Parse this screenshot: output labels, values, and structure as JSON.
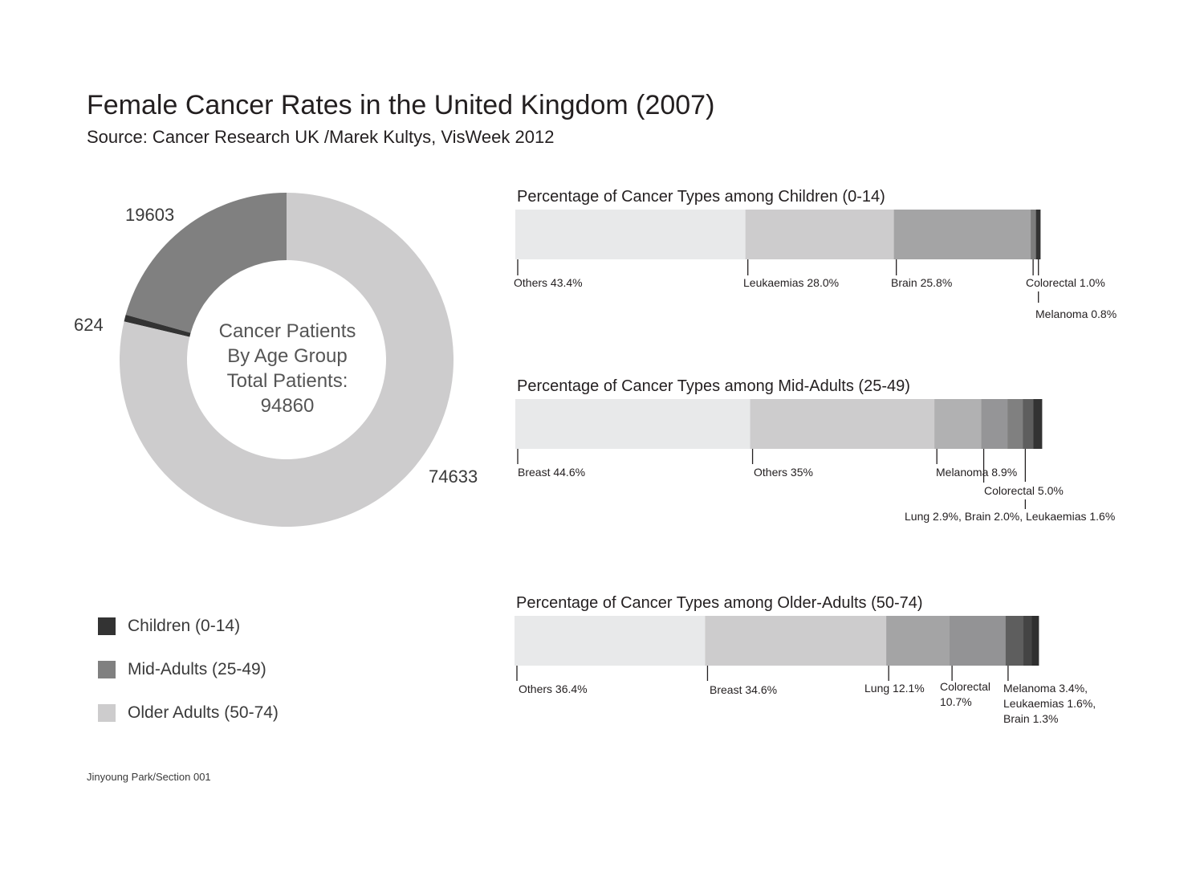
{
  "header": {
    "title": "Female Cancer Rates in the United Kingdom (2007)",
    "subtitle": "Source: Cancer Research UK /Marek Kultys, VisWeek 2012"
  },
  "donut": {
    "center_lines": [
      "Cancer Patients",
      "By Age Group",
      "Total Patients:",
      "94860"
    ]
  },
  "legend": [
    {
      "label": "Children (0-14)",
      "color": "#333333"
    },
    {
      "label": "Mid-Adults (25-49)",
      "color": "#808080"
    },
    {
      "label": "Older Adults (50-74)",
      "color": "#cdcccd"
    }
  ],
  "footer": "Jinyoung Park/Section 001",
  "chart_data": [
    {
      "type": "pie",
      "variant": "donut",
      "categories": [
        "Children (0-14)",
        "Mid-Adults (25-49)",
        "Older Adults (50-74)"
      ],
      "value_labels": [
        "624",
        "19603",
        "74633"
      ],
      "values": [
        624,
        19603,
        74633
      ],
      "colors": [
        "#333333",
        "#808080",
        "#cdcccd"
      ],
      "total": 94860
    },
    {
      "type": "bar",
      "orientation": "horizontal-stacked",
      "title": "Percentage of Cancer Types among Children (0-14)",
      "categories": [
        "Others",
        "Leukaemias",
        "Brain",
        "Colorectal",
        "Melanoma"
      ],
      "values": [
        43.4,
        28.0,
        25.8,
        1.0,
        0.8
      ],
      "colors": [
        "#e8e9ea",
        "#cdcccd",
        "#a4a4a5",
        "#7d7d7d",
        "#333333"
      ],
      "labels": [
        "Others 43.4%",
        "Leukaemias 28.0%",
        "Brain 25.8%",
        "Colorectal 1.0%",
        "Melanoma 0.8%"
      ]
    },
    {
      "type": "bar",
      "orientation": "horizontal-stacked",
      "title": "Percentage of Cancer Types among Mid-Adults (25-49)",
      "categories": [
        "Breast",
        "Others",
        "Melanoma",
        "Colorectal",
        "Lung",
        "Brain",
        "Leukaemias"
      ],
      "values": [
        44.6,
        35,
        8.9,
        5.0,
        2.9,
        2.0,
        1.6
      ],
      "colors": [
        "#e8e9ea",
        "#cdcccd",
        "#b1b1b2",
        "#959597",
        "#808080",
        "#5e5e5e",
        "#333333"
      ],
      "labels": [
        "Breast 44.6%",
        "Others 35%",
        "Melanoma 8.9%",
        "Colorectal 5.0%",
        "Lung 2.9%, Brain 2.0%, Leukaemias 1.6%"
      ]
    },
    {
      "type": "bar",
      "orientation": "horizontal-stacked",
      "title": "Percentage of Cancer Types among Older-Adults (50-74)",
      "categories": [
        "Others",
        "Breast",
        "Lung",
        "Colorectal",
        "Melanoma",
        "Leukaemias",
        "Brain"
      ],
      "values": [
        36.4,
        34.6,
        12.1,
        10.7,
        3.4,
        1.6,
        1.3
      ],
      "colors": [
        "#e8e9ea",
        "#cdcccd",
        "#a4a4a5",
        "#939395",
        "#5e5e5e",
        "#444444",
        "#2f2f2f"
      ],
      "labels": [
        "Others 36.4%",
        "Breast 34.6%",
        "Lung 12.1%",
        "Colorectal 10.7%",
        "Melanoma 3.4%, Leukaemias 1.6%, Brain 1.3%"
      ]
    }
  ]
}
